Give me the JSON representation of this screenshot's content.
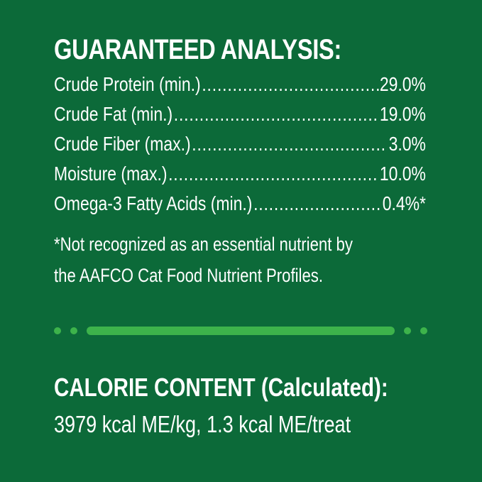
{
  "analysis": {
    "title": "GUARANTEED ANALYSIS:",
    "rows": [
      {
        "label": "Crude Protein (min.)",
        "value": "29.0%"
      },
      {
        "label": "Crude Fat (min.)",
        "value": "19.0%"
      },
      {
        "label": "Crude Fiber (max.)",
        "value": "3.0%"
      },
      {
        "label": "Moisture (max.)",
        "value": "10.0%"
      },
      {
        "label": "Omega-3 Fatty Acids (min.)",
        "value": "0.4%*"
      }
    ],
    "footnote_line1": "*Not recognized as an essential nutrient by",
    "footnote_line2": "the AAFCO Cat Food Nutrient Profiles."
  },
  "calorie": {
    "title": "CALORIE CONTENT (Calculated):",
    "value": "3979 kcal ME/kg, 1.3 kcal ME/treat"
  },
  "colors": {
    "background": "#0c6a39",
    "accent": "#3db34b",
    "text": "#ffffff"
  }
}
